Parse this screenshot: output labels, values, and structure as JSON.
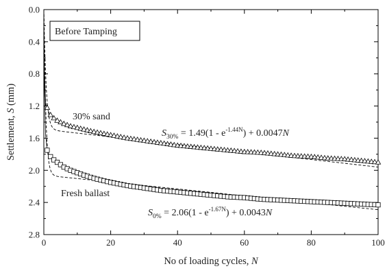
{
  "chart_data": {
    "type": "line",
    "title": "",
    "xlabel": "No of loading cycles, ",
    "xlabel_var": "N",
    "ylabel": "Settlement, ",
    "ylabel_var": "S",
    "ylabel_unit": " (mm)",
    "xlim": [
      0,
      100
    ],
    "ylim": [
      0.0,
      2.8
    ],
    "y_inverted": true,
    "x_ticks": [
      "0",
      "20",
      "40",
      "60",
      "80",
      "100"
    ],
    "y_ticks": [
      "0.0",
      "0.4",
      "0.8",
      "1.2",
      "1.6",
      "2.0",
      "2.4",
      "2.8"
    ],
    "grid": false,
    "series": [
      {
        "name": "30% sand",
        "marker": "triangle",
        "x": [
          0.01,
          0.2,
          0.5,
          1,
          1.5,
          2,
          3,
          4,
          5,
          6,
          8,
          10,
          12,
          15,
          20,
          25,
          30,
          35,
          40,
          45,
          50,
          55,
          60,
          65,
          70,
          75,
          80,
          85,
          90,
          95,
          100
        ],
        "y": [
          0.15,
          0.8,
          1.15,
          1.22,
          1.28,
          1.31,
          1.35,
          1.38,
          1.4,
          1.42,
          1.45,
          1.47,
          1.49,
          1.52,
          1.56,
          1.6,
          1.63,
          1.66,
          1.69,
          1.71,
          1.73,
          1.75,
          1.77,
          1.78,
          1.8,
          1.82,
          1.83,
          1.85,
          1.86,
          1.88,
          1.9
        ]
      },
      {
        "name": "Fresh ballast",
        "marker": "square",
        "x": [
          0.01,
          0.2,
          0.5,
          1,
          1.5,
          2,
          3,
          4,
          5,
          6,
          8,
          10,
          12,
          15,
          20,
          25,
          30,
          35,
          40,
          45,
          50,
          55,
          60,
          65,
          70,
          75,
          80,
          85,
          90,
          95,
          100
        ],
        "y": [
          0.2,
          1.0,
          1.55,
          1.75,
          1.8,
          1.83,
          1.87,
          1.9,
          1.93,
          1.96,
          2.0,
          2.03,
          2.06,
          2.1,
          2.15,
          2.19,
          2.22,
          2.25,
          2.27,
          2.29,
          2.31,
          2.33,
          2.34,
          2.36,
          2.37,
          2.38,
          2.39,
          2.4,
          2.41,
          2.42,
          2.43
        ]
      },
      {
        "name": "30% sand fit",
        "style": "dashed",
        "model": {
          "a": 1.49,
          "b": 1.44,
          "c": 0.0047
        }
      },
      {
        "name": "Fresh ballast fit",
        "style": "dashed",
        "model": {
          "a": 2.06,
          "b": 1.67,
          "c": 0.0043
        }
      }
    ],
    "annotations": {
      "box_label": "Before Tamping",
      "sand_label": "30% sand",
      "ballast_label": "Fresh ballast",
      "eq_sand": {
        "S": "S",
        "sub": "30%",
        "pre": " = 1.49(1 - e",
        "sup": "-1.44N",
        "post": ") + 0.0047",
        "N": "N"
      },
      "eq_ballast": {
        "S": "S",
        "sub": "0%",
        "pre": " = 2.06(1 - e",
        "sup": "-1.67N",
        "post": ") + 0.0043",
        "N": "N"
      }
    }
  }
}
